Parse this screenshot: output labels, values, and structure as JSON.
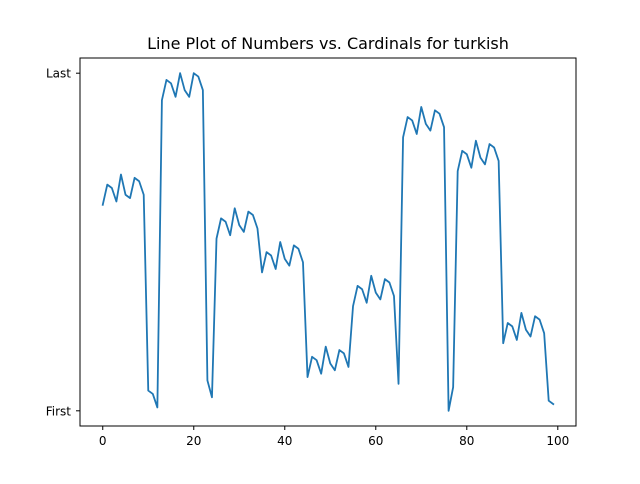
{
  "chart_data": {
    "type": "line",
    "title": "Line Plot of Numbers vs. Cardinals for turkish",
    "xlabel": "",
    "ylabel": "",
    "xlim": [
      -5,
      104
    ],
    "ylim": [
      -0.045,
      1.045
    ],
    "grid": false,
    "x_ticks": [
      0,
      20,
      40,
      60,
      80,
      100
    ],
    "x_tick_labels": [
      "0",
      "20",
      "40",
      "60",
      "80",
      "100"
    ],
    "y_ticks": [
      0,
      1
    ],
    "y_tick_labels": [
      "First",
      "Last"
    ],
    "series": [
      {
        "color": "#1f77b4",
        "x": [
          0,
          1,
          2,
          3,
          4,
          5,
          6,
          7,
          8,
          9,
          10,
          11,
          12,
          13,
          14,
          15,
          16,
          17,
          18,
          19,
          20,
          21,
          22,
          23,
          24,
          25,
          26,
          27,
          28,
          29,
          30,
          31,
          32,
          33,
          34,
          35,
          36,
          37,
          38,
          39,
          40,
          41,
          42,
          43,
          44,
          45,
          46,
          47,
          48,
          49,
          50,
          51,
          52,
          53,
          54,
          55,
          56,
          57,
          58,
          59,
          60,
          61,
          62,
          63,
          64,
          65,
          66,
          67,
          68,
          69,
          70,
          71,
          72,
          73,
          74,
          75,
          76,
          77,
          78,
          79,
          80,
          81,
          82,
          83,
          84,
          85,
          86,
          87,
          88,
          89,
          90,
          91,
          92,
          93,
          94,
          95,
          96,
          97,
          98,
          99
        ],
        "y": [
          0.61,
          0.67,
          0.66,
          0.62,
          0.7,
          0.64,
          0.63,
          0.69,
          0.68,
          0.64,
          0.06,
          0.05,
          0.01,
          0.92,
          0.98,
          0.97,
          0.93,
          1.0,
          0.95,
          0.93,
          1.0,
          0.99,
          0.95,
          0.09,
          0.04,
          0.51,
          0.57,
          0.56,
          0.52,
          0.6,
          0.55,
          0.53,
          0.59,
          0.58,
          0.54,
          0.41,
          0.47,
          0.46,
          0.42,
          0.5,
          0.45,
          0.43,
          0.49,
          0.48,
          0.44,
          0.1,
          0.16,
          0.15,
          0.11,
          0.19,
          0.14,
          0.12,
          0.18,
          0.17,
          0.13,
          0.31,
          0.37,
          0.36,
          0.32,
          0.4,
          0.35,
          0.33,
          0.39,
          0.38,
          0.34,
          0.08,
          0.81,
          0.87,
          0.86,
          0.82,
          0.9,
          0.85,
          0.83,
          0.89,
          0.88,
          0.84,
          0.0,
          0.07,
          0.71,
          0.77,
          0.76,
          0.72,
          0.8,
          0.75,
          0.73,
          0.79,
          0.78,
          0.74,
          0.2,
          0.26,
          0.25,
          0.21,
          0.29,
          0.24,
          0.22,
          0.28,
          0.27,
          0.23,
          0.03,
          0.02
        ]
      }
    ]
  }
}
